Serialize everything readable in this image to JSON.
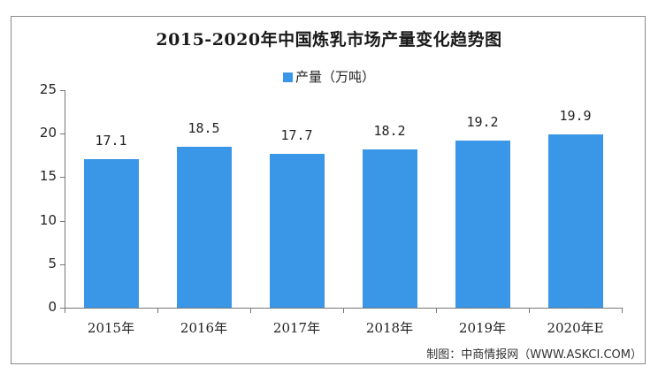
{
  "chart_data": {
    "type": "bar",
    "title": "2015-2020年中国炼乳市场产量变化趋势图",
    "categories": [
      "2015年",
      "2016年",
      "2017年",
      "2018年",
      "2019年",
      "2020年E"
    ],
    "series": [
      {
        "name": "产量（万吨）",
        "values": [
          17.1,
          18.5,
          17.7,
          18.2,
          19.2,
          19.9
        ],
        "color": "#3a96e6"
      }
    ],
    "value_labels": [
      "17.1",
      "18.5",
      "17.7",
      "18.2",
      "19.2",
      "19.9"
    ],
    "xlabel": "",
    "ylabel": "",
    "ylim": [
      0,
      25
    ],
    "yticks": [
      "0",
      "5",
      "10",
      "15",
      "20",
      "25"
    ],
    "grid": false,
    "legend_position": "top"
  },
  "legend": {
    "label": "产量（万吨）"
  },
  "source": "制图：中商情报网（WWW.ASKCI.COM）"
}
